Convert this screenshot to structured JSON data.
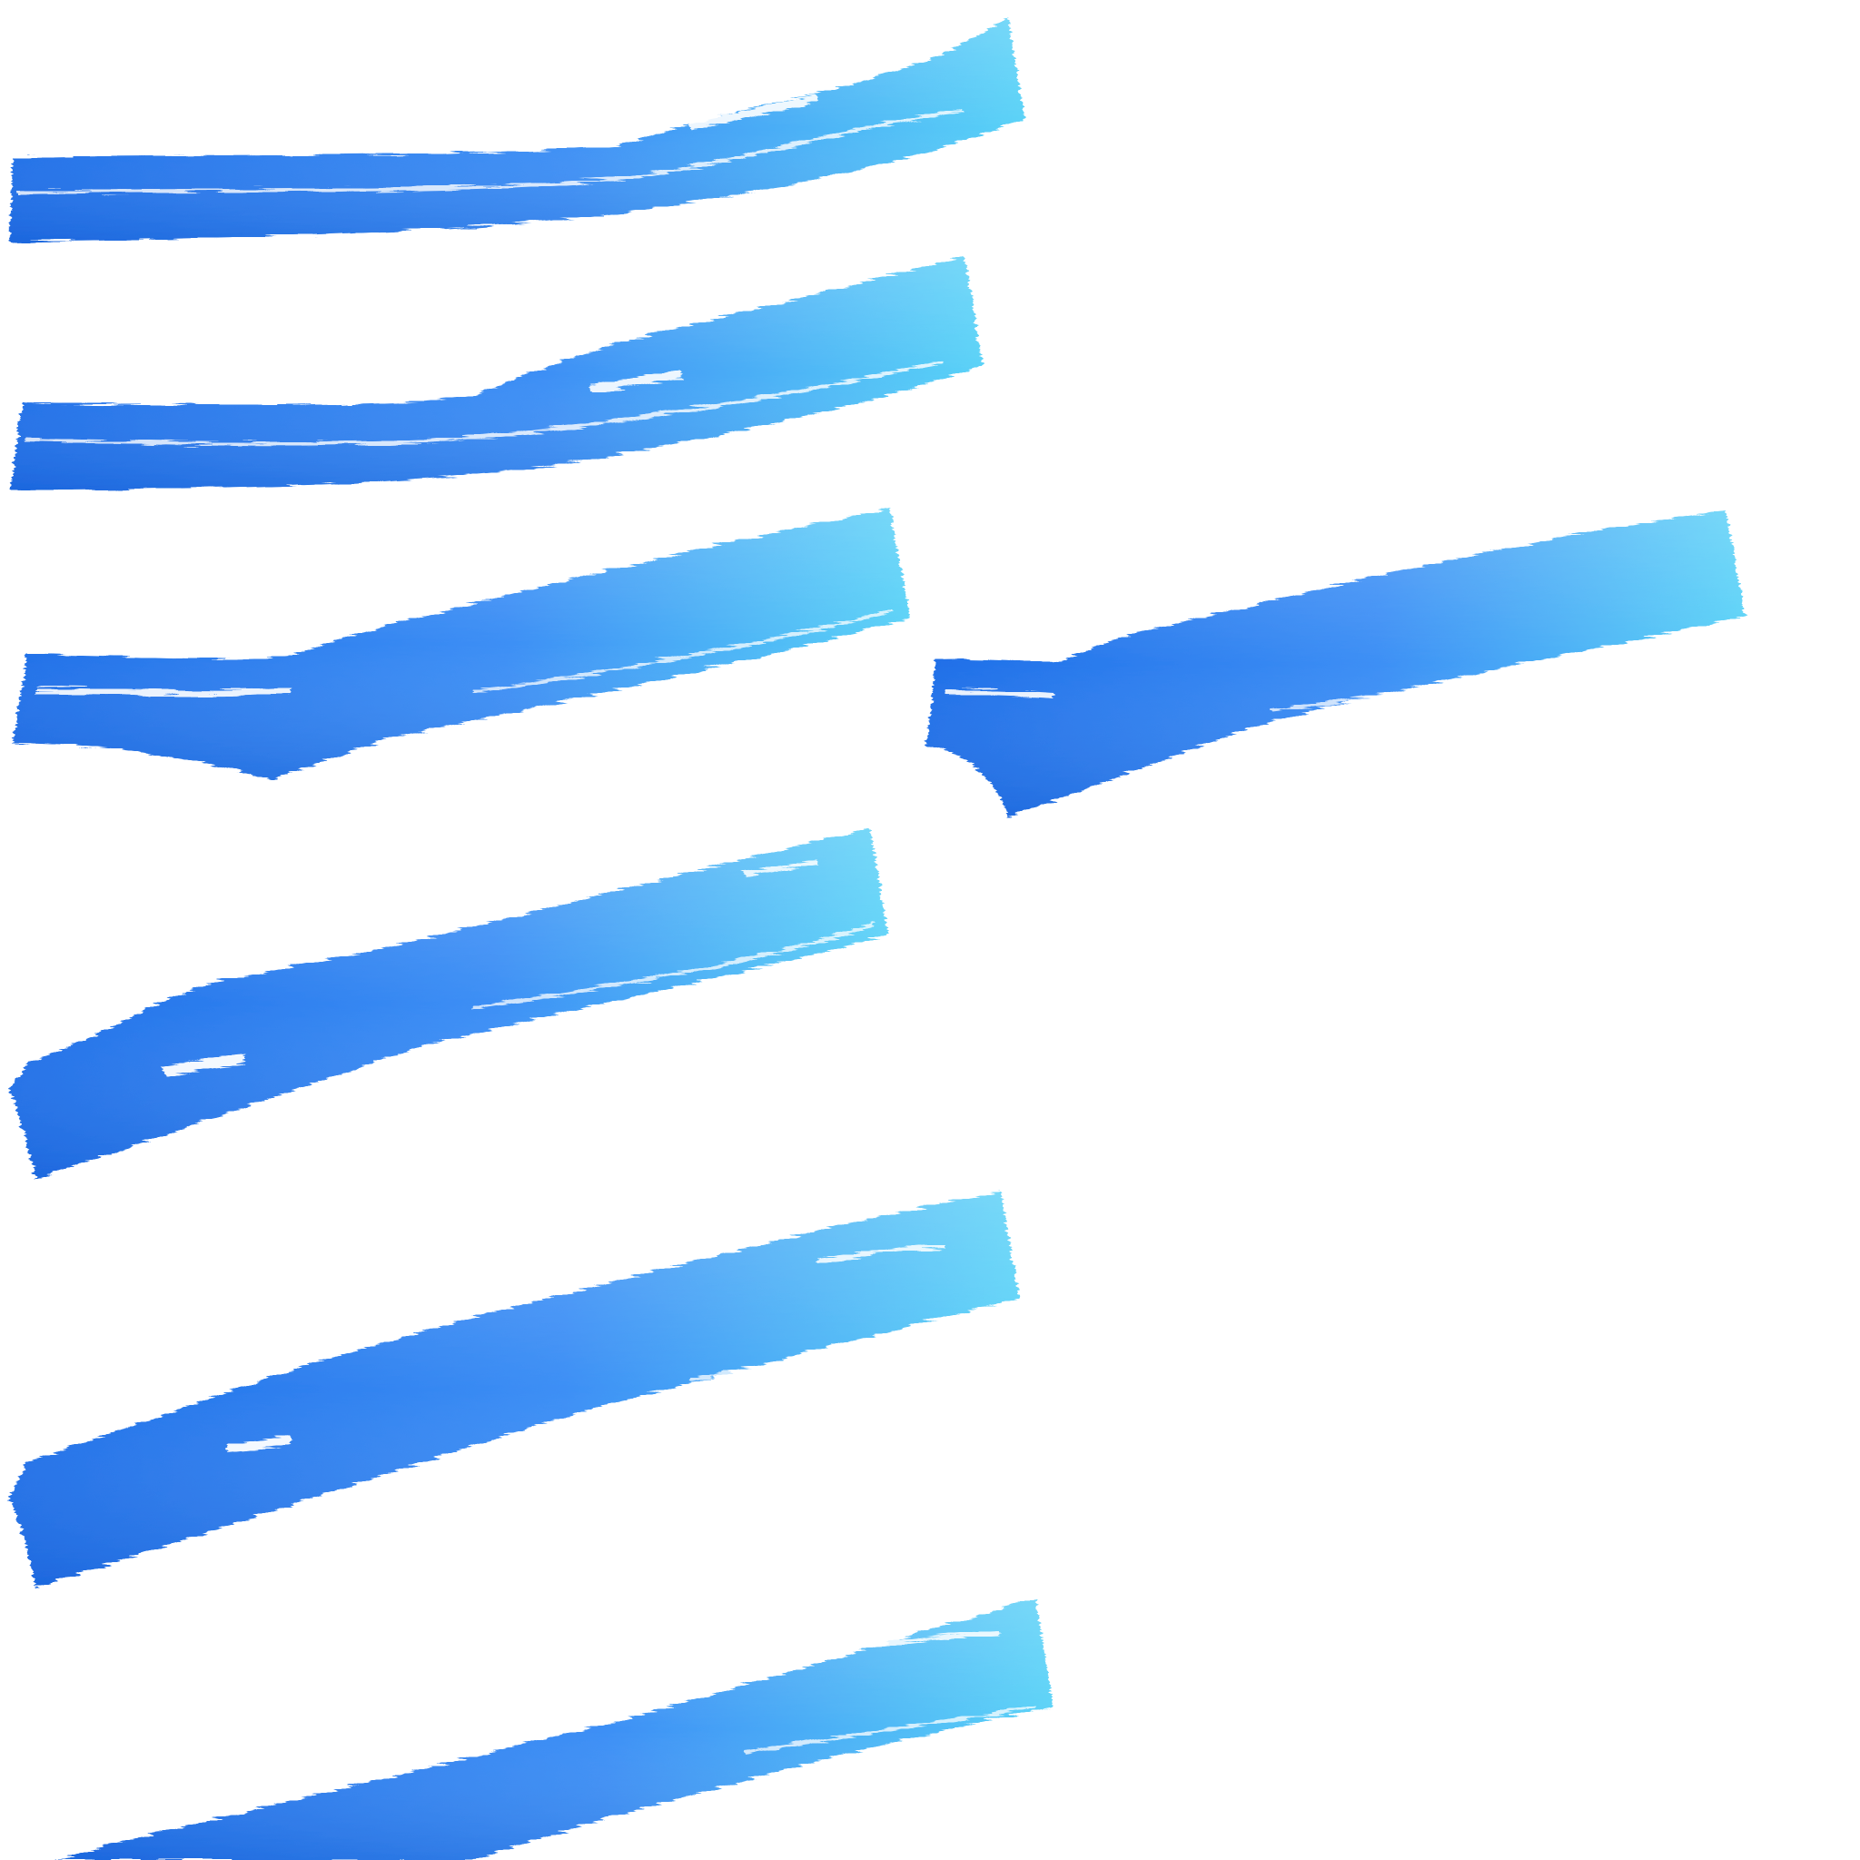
{
  "background_color": "#ffffff",
  "stroke_count": 7,
  "palette": {
    "deep_blue": "#1f6fe8",
    "mid_blue": "#3d8ff5",
    "light_cyan": "#5ad2f7",
    "highlight": "#ffffff"
  }
}
